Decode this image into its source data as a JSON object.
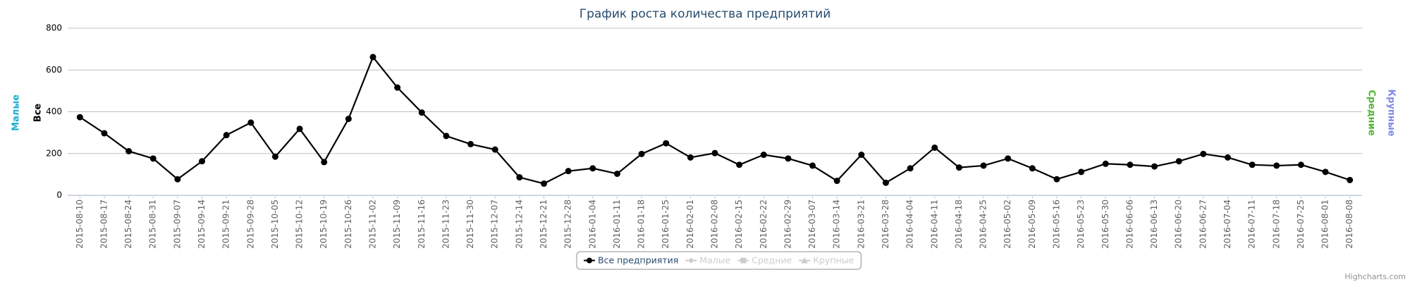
{
  "chart_data": {
    "type": "line",
    "title": "График роста количества предприятий",
    "categories": [
      "2015-08-10",
      "2015-08-17",
      "2015-08-24",
      "2015-08-31",
      "2015-09-07",
      "2015-09-14",
      "2015-09-21",
      "2015-09-28",
      "2015-10-05",
      "2015-10-12",
      "2015-10-19",
      "2015-10-26",
      "2015-11-02",
      "2015-11-09",
      "2015-11-16",
      "2015-11-23",
      "2015-11-30",
      "2015-12-07",
      "2015-12-14",
      "2015-12-21",
      "2015-12-28",
      "2016-01-04",
      "2016-01-11",
      "2016-01-18",
      "2016-01-25",
      "2016-02-01",
      "2016-02-08",
      "2016-02-15",
      "2016-02-22",
      "2016-02-29",
      "2016-03-07",
      "2016-03-14",
      "2016-03-21",
      "2016-03-28",
      "2016-04-04",
      "2016-04-11",
      "2016-04-18",
      "2016-04-25",
      "2016-05-02",
      "2016-05-09",
      "2016-05-16",
      "2016-05-23",
      "2016-05-30",
      "2016-06-06",
      "2016-06-13",
      "2016-06-20",
      "2016-06-27",
      "2016-07-04",
      "2016-07-11",
      "2016-07-18",
      "2016-07-25",
      "2016-08-01",
      "2016-08-08"
    ],
    "series": [
      {
        "name": "Все предприятия",
        "color": "#000000",
        "visible": true,
        "values": [
          374,
          297,
          211,
          176,
          77,
          163,
          288,
          348,
          185,
          318,
          159,
          366,
          662,
          516,
          396,
          284,
          245,
          219,
          86,
          56,
          116,
          129,
          103,
          198,
          249,
          181,
          202,
          146,
          194,
          176,
          142,
          69,
          194,
          60,
          129,
          228,
          133,
          142,
          176,
          129,
          77,
          112,
          151,
          146,
          138,
          163,
          198,
          181,
          146,
          142,
          146,
          112,
          73
        ]
      },
      {
        "name": "Малые",
        "color": "#cccccc",
        "visible": false
      },
      {
        "name": "Средние",
        "color": "#cccccc",
        "visible": false
      },
      {
        "name": "Крупные",
        "color": "#cccccc",
        "visible": false
      }
    ],
    "y_axis_titles": [
      {
        "text": "Малые",
        "color": "#1aadce",
        "side": "left"
      },
      {
        "text": "Все",
        "color": "#000000",
        "side": "left"
      },
      {
        "text": "Средние",
        "color": "#50b432",
        "side": "right"
      },
      {
        "text": "Крупные",
        "color": "#8085e9",
        "side": "right"
      }
    ],
    "ylim": [
      0,
      800
    ],
    "yticks": [
      0,
      200,
      400,
      600,
      800
    ],
    "grid": true,
    "credits": "Highcharts.com"
  }
}
